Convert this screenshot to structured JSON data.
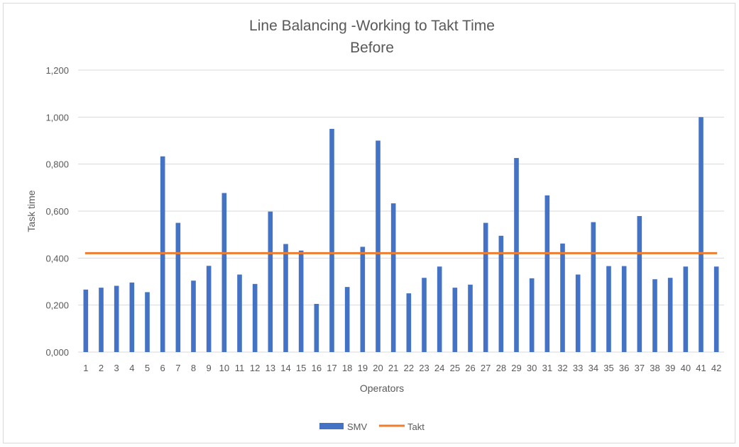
{
  "chart_data": {
    "type": "bar",
    "title": "Line Balancing -Working to Takt Time",
    "subtitle": "Before",
    "xlabel": "Operators",
    "ylabel": "Task time",
    "ylim": [
      0,
      1.2
    ],
    "yticks": [
      "0,000",
      "0,200",
      "0,400",
      "0,600",
      "0,800",
      "1,000",
      "1,200"
    ],
    "grid": true,
    "legend_position": "bottom",
    "categories": [
      "1",
      "2",
      "3",
      "4",
      "5",
      "6",
      "7",
      "8",
      "9",
      "10",
      "11",
      "12",
      "13",
      "14",
      "15",
      "16",
      "17",
      "18",
      "19",
      "20",
      "21",
      "22",
      "23",
      "24",
      "25",
      "26",
      "27",
      "28",
      "29",
      "30",
      "31",
      "32",
      "33",
      "34",
      "35",
      "36",
      "37",
      "38",
      "39",
      "40",
      "41",
      "42"
    ],
    "series": [
      {
        "name": "SMV",
        "type": "bar",
        "color": "#4472c4",
        "values": [
          0.266,
          0.274,
          0.282,
          0.296,
          0.255,
          0.833,
          0.55,
          0.304,
          0.367,
          0.677,
          0.33,
          0.29,
          0.598,
          0.46,
          0.432,
          0.205,
          0.95,
          0.277,
          0.448,
          0.9,
          0.633,
          0.25,
          0.316,
          0.364,
          0.274,
          0.287,
          0.55,
          0.495,
          0.826,
          0.314,
          0.667,
          0.462,
          0.33,
          0.553,
          0.366,
          0.366,
          0.579,
          0.31,
          0.316,
          0.364,
          1.0,
          0.364
        ]
      },
      {
        "name": "Takt",
        "type": "line",
        "color": "#ed7d31",
        "value": 0.421
      }
    ]
  }
}
